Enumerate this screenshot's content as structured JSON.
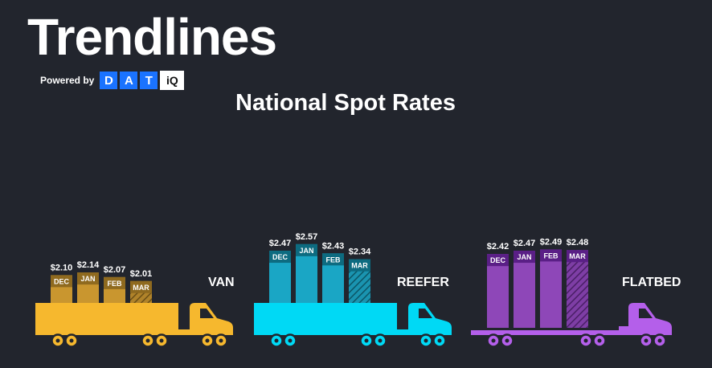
{
  "header": {
    "title": "Trendlines",
    "powered_by": "Powered by",
    "logo_letters": [
      "D",
      "A",
      "T"
    ],
    "logo_suffix": "iQ",
    "subtitle": "National Spot Rates"
  },
  "colors": {
    "background": "#22252d",
    "logo_blue": "#1a73ff",
    "van_bar": "#c9962f",
    "van_truck": "#f6b82e",
    "reefer_bar": "#1aa6c5",
    "reefer_truck": "#00d9f5",
    "flatbed_bar": "#8e47b8",
    "flatbed_truck": "#b45fea"
  },
  "chart_data": {
    "type": "bar",
    "title": "National Spot Rates",
    "categories": [
      "DEC",
      "JAN",
      "FEB",
      "MAR"
    ],
    "series": [
      {
        "name": "VAN",
        "values": [
          2.1,
          2.14,
          2.07,
          2.01
        ],
        "labels": [
          "$2.10",
          "$2.14",
          "$2.07",
          "$2.01"
        ]
      },
      {
        "name": "REEFER",
        "values": [
          2.47,
          2.57,
          2.43,
          2.34
        ],
        "labels": [
          "$2.47",
          "$2.57",
          "$2.43",
          "$2.34"
        ]
      },
      {
        "name": "FLATBED",
        "values": [
          2.42,
          2.47,
          2.49,
          2.48
        ],
        "labels": [
          "$2.42",
          "$2.47",
          "$2.49",
          "$2.48"
        ]
      }
    ],
    "hatched_category": "MAR",
    "grid": false,
    "legend": "none"
  }
}
